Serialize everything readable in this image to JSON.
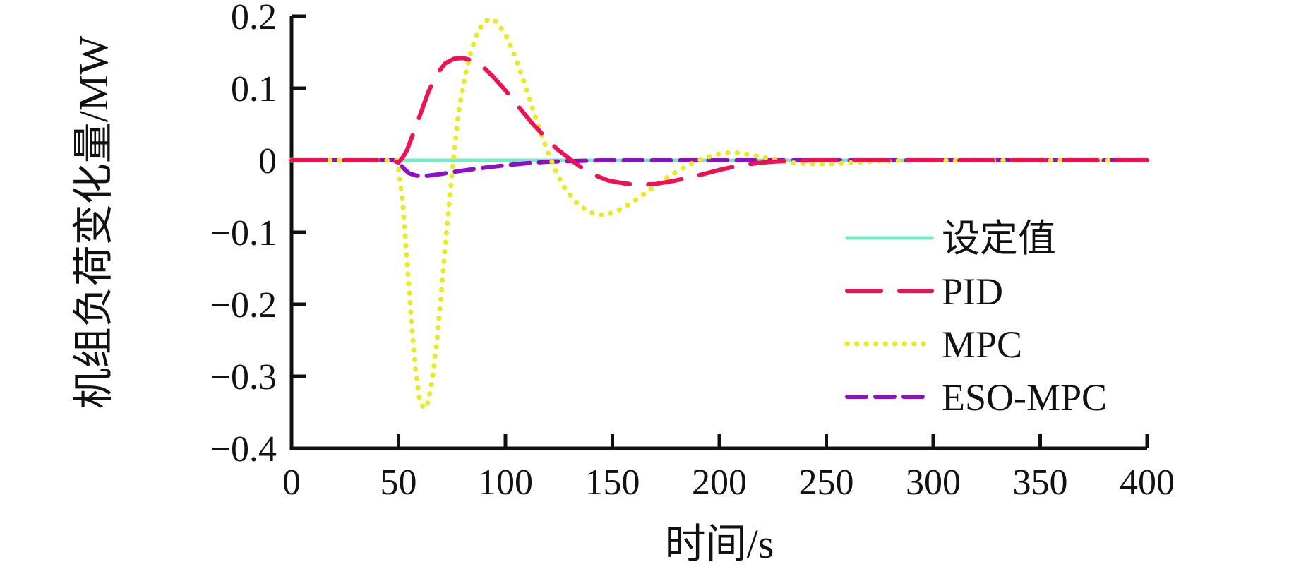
{
  "chart_data": {
    "type": "line",
    "title": "",
    "xlabel": "时间/s",
    "ylabel": "机组负荷变化量/MW",
    "xlim": [
      0,
      400
    ],
    "ylim": [
      -0.4,
      0.2
    ],
    "grid": false,
    "legend_position": "center-right",
    "axis_color": "#111111",
    "xticks": [
      {
        "v": 0,
        "label": "0"
      },
      {
        "v": 50,
        "label": "50"
      },
      {
        "v": 100,
        "label": "100"
      },
      {
        "v": 150,
        "label": "150"
      },
      {
        "v": 200,
        "label": "200"
      },
      {
        "v": 250,
        "label": "250"
      },
      {
        "v": 300,
        "label": "300"
      },
      {
        "v": 350,
        "label": "350"
      },
      {
        "v": 400,
        "label": "400"
      }
    ],
    "yticks": [
      {
        "v": 0.2,
        "label": "0.2"
      },
      {
        "v": 0.1,
        "label": "0.1"
      },
      {
        "v": 0,
        "label": "0"
      },
      {
        "v": -0.1,
        "label": "−0.1"
      },
      {
        "v": -0.2,
        "label": "−0.2"
      },
      {
        "v": -0.3,
        "label": "−0.3"
      },
      {
        "v": -0.4,
        "label": "−0.4"
      }
    ],
    "legend_order": [
      "setpoint",
      "pid",
      "mpc",
      "eso-mpc"
    ],
    "draw_order": [
      "setpoint",
      "eso-mpc",
      "mpc",
      "pid"
    ],
    "series": [
      {
        "id": "setpoint",
        "name": "设定值",
        "color": "#73e9c6",
        "dash": "",
        "linewidth": 5,
        "points": [
          [
            0,
            0
          ],
          [
            400,
            0
          ]
        ]
      },
      {
        "id": "pid",
        "name": "PID",
        "color": "#ee1254",
        "dash": "48 26",
        "linewidth": 6,
        "points": [
          [
            0,
            0
          ],
          [
            47,
            0
          ],
          [
            50,
            -0.003
          ],
          [
            52,
            0.004
          ],
          [
            54,
            0.014
          ],
          [
            56,
            0.03
          ],
          [
            60,
            0.062
          ],
          [
            64,
            0.095
          ],
          [
            68,
            0.12
          ],
          [
            72,
            0.135
          ],
          [
            76,
            0.141
          ],
          [
            80,
            0.142
          ],
          [
            84,
            0.139
          ],
          [
            89,
            0.131
          ],
          [
            94,
            0.117
          ],
          [
            100,
            0.097
          ],
          [
            106,
            0.075
          ],
          [
            112,
            0.053
          ],
          [
            118,
            0.034
          ],
          [
            124,
            0.016
          ],
          [
            130,
            0.002
          ],
          [
            136,
            -0.011
          ],
          [
            142,
            -0.021
          ],
          [
            148,
            -0.028
          ],
          [
            155,
            -0.032
          ],
          [
            162,
            -0.034
          ],
          [
            170,
            -0.033
          ],
          [
            178,
            -0.029
          ],
          [
            186,
            -0.024
          ],
          [
            194,
            -0.018
          ],
          [
            202,
            -0.012
          ],
          [
            210,
            -0.007
          ],
          [
            220,
            -0.003
          ],
          [
            230,
            -0.001
          ],
          [
            245,
            0
          ],
          [
            400,
            0
          ]
        ]
      },
      {
        "id": "mpc",
        "name": "MPC",
        "color": "#e8ea22",
        "dash": "0.5 13",
        "linewidth": 7,
        "points": [
          [
            0,
            0
          ],
          [
            49,
            0
          ],
          [
            50,
            -0.01
          ],
          [
            52,
            -0.06
          ],
          [
            54,
            -0.14
          ],
          [
            56,
            -0.22
          ],
          [
            58,
            -0.29
          ],
          [
            60,
            -0.335
          ],
          [
            62,
            -0.345
          ],
          [
            64,
            -0.335
          ],
          [
            66,
            -0.3
          ],
          [
            68,
            -0.25
          ],
          [
            70,
            -0.185
          ],
          [
            72,
            -0.115
          ],
          [
            74,
            -0.05
          ],
          [
            76,
            0.01
          ],
          [
            78,
            0.065
          ],
          [
            81,
            0.115
          ],
          [
            84,
            0.152
          ],
          [
            87,
            0.178
          ],
          [
            90,
            0.192
          ],
          [
            93,
            0.197
          ],
          [
            96,
            0.192
          ],
          [
            100,
            0.175
          ],
          [
            104,
            0.148
          ],
          [
            108,
            0.115
          ],
          [
            112,
            0.078
          ],
          [
            116,
            0.042
          ],
          [
            120,
            0.01
          ],
          [
            124,
            -0.018
          ],
          [
            128,
            -0.04
          ],
          [
            133,
            -0.058
          ],
          [
            138,
            -0.07
          ],
          [
            143,
            -0.076
          ],
          [
            148,
            -0.075
          ],
          [
            154,
            -0.068
          ],
          [
            160,
            -0.057
          ],
          [
            167,
            -0.042
          ],
          [
            174,
            -0.027
          ],
          [
            181,
            -0.014
          ],
          [
            188,
            -0.003
          ],
          [
            194,
            0.004
          ],
          [
            200,
            0.009
          ],
          [
            206,
            0.011
          ],
          [
            212,
            0.009
          ],
          [
            219,
            0.005
          ],
          [
            226,
            0.001
          ],
          [
            233,
            -0.003
          ],
          [
            242,
            -0.005
          ],
          [
            252,
            -0.005
          ],
          [
            263,
            -0.003
          ],
          [
            275,
            -0.001
          ],
          [
            290,
            0
          ],
          [
            400,
            0
          ]
        ]
      },
      {
        "id": "eso-mpc",
        "name": "ESO-MPC",
        "color": "#8c10c4",
        "dash": "27 13",
        "linewidth": 6,
        "points": [
          [
            0,
            0
          ],
          [
            49,
            0
          ],
          [
            51,
            -0.006
          ],
          [
            53,
            -0.013
          ],
          [
            55,
            -0.018
          ],
          [
            58,
            -0.021
          ],
          [
            61,
            -0.022
          ],
          [
            65,
            -0.021
          ],
          [
            70,
            -0.019
          ],
          [
            76,
            -0.016
          ],
          [
            83,
            -0.013
          ],
          [
            91,
            -0.01
          ],
          [
            100,
            -0.007
          ],
          [
            110,
            -0.004
          ],
          [
            120,
            -0.002
          ],
          [
            132,
            -0.001
          ],
          [
            145,
            0
          ],
          [
            400,
            0
          ]
        ]
      }
    ]
  }
}
